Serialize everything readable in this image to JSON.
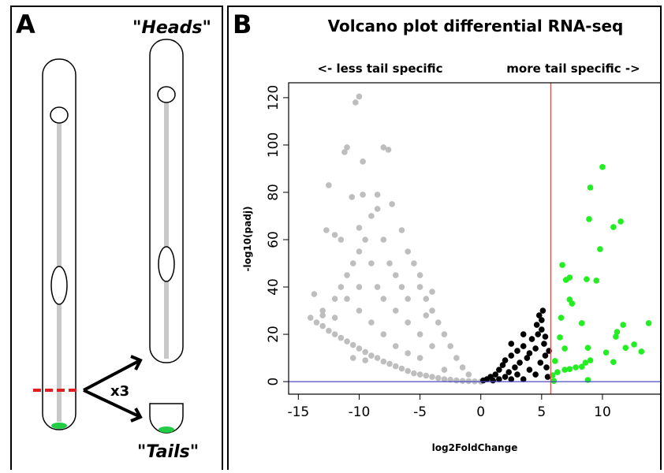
{
  "panel_a": {
    "label": "A",
    "heads": "\"Heads\"",
    "tails": "\"Tails\"",
    "multiplier": "x3"
  },
  "chart_data": {
    "type": "scatter",
    "panel_label": "B",
    "title": "Volcano plot differential RNA-seq",
    "annotations": [
      "<- less tail specific",
      "more tail specific ->"
    ],
    "xlabel": "log2FoldChange",
    "ylabel": "-log10(padj)",
    "xlim": [
      -15.8,
      14.8
    ],
    "ylim": [
      -5.3,
      126.3
    ],
    "xticks": [
      -15,
      -10,
      -5,
      0,
      5,
      10
    ],
    "yticks": [
      0,
      20,
      40,
      60,
      80,
      100,
      120
    ],
    "reference_lines": [
      {
        "axis": "x",
        "value": 5.75,
        "color": "#d9534f"
      },
      {
        "axis": "y",
        "value": 0,
        "color": "#4a4ac8"
      }
    ],
    "series": [
      {
        "color": "#bebebe",
        "x": [
          -14,
          -13.5,
          -13,
          -12.5,
          -12,
          -11.5,
          -11,
          -10.5,
          -10,
          -9.5,
          -9,
          -8.5,
          -8,
          -7.5,
          -7,
          -6.5,
          -6,
          -5.5,
          -5,
          -4.5,
          -4,
          -3.5,
          -3,
          -2.5,
          -2,
          -1.5,
          -1,
          -0.5,
          0,
          -13,
          -12,
          -11.5,
          -11,
          -10.5,
          -10,
          -9.5,
          -12.7,
          -12,
          -11.5,
          -10,
          -9,
          -8.5,
          -7.3,
          -6.5,
          -6,
          -5.5,
          -5,
          -5,
          -4.5,
          -4,
          -3.5,
          -3,
          -2.5,
          -2,
          -1.5,
          -1,
          -8,
          -7.5,
          -7,
          -6.5,
          -6,
          -9,
          -8.5,
          -8,
          -7,
          -6,
          -5,
          -4,
          -10,
          -11,
          -10,
          -9,
          -8,
          -7,
          -6,
          -5,
          -3,
          -10,
          -10.3,
          -11,
          -11.2,
          -8,
          -7.6,
          -9.7,
          -12.5,
          -10.6,
          -9.7,
          -8.5,
          -13.7,
          -12,
          -10.5,
          -9.5,
          -13,
          -4,
          -4.5
        ],
        "values": [
          27,
          25,
          23.5,
          21.5,
          20,
          18.5,
          17,
          15.5,
          14,
          12.5,
          11,
          10,
          8.5,
          7.5,
          6.5,
          5.5,
          4.5,
          3.5,
          3,
          2.5,
          2,
          1.5,
          1,
          0.8,
          0.5,
          0.3,
          0.2,
          0.1,
          0,
          30,
          35,
          40,
          45,
          50,
          55,
          60,
          64,
          62,
          60,
          65,
          70,
          73,
          75,
          64,
          55,
          50,
          45,
          40,
          35,
          30,
          25,
          20,
          15,
          10,
          6,
          3,
          60,
          50,
          45,
          40,
          35,
          50,
          40,
          35,
          30,
          25,
          20,
          15,
          40,
          35,
          30,
          25,
          20,
          15,
          12,
          10,
          5,
          120.5,
          118,
          99,
          97,
          99,
          98,
          93,
          83,
          78,
          79,
          79,
          37,
          27,
          10,
          9,
          28,
          38,
          28
        ]
      },
      {
        "color": "#000000",
        "x": [
          0.2,
          0.5,
          0.8,
          1,
          1.2,
          1.5,
          1.5,
          1.8,
          2,
          2,
          2.3,
          2.5,
          2.5,
          2.8,
          3,
          3,
          3.2,
          3.5,
          3.5,
          3.8,
          4,
          4,
          4.2,
          4.5,
          4.5,
          4.7,
          4.9,
          5,
          5,
          5.1,
          5.2,
          5.3,
          5.4,
          5.5,
          5.6,
          5.3,
          4.6,
          4.8,
          3.5,
          2.5
        ],
        "values": [
          0.5,
          1,
          2,
          0.5,
          3,
          5,
          1,
          7,
          2,
          9,
          4,
          11,
          1,
          6,
          13,
          3,
          8,
          15,
          1,
          10,
          5,
          12,
          18,
          14,
          3,
          20,
          8,
          26,
          22,
          30,
          16,
          11,
          6,
          2,
          13,
          19,
          24,
          28,
          20,
          16
        ]
      },
      {
        "color": "#22ee22",
        "x": [
          10,
          9,
          8.9,
          11.5,
          10.9,
          9.8,
          6.7,
          7.3,
          7,
          9.5,
          8.7,
          7.3,
          7.5,
          6.6,
          8.3,
          11.7,
          13.8,
          11.2,
          11.1,
          6.5,
          12.6,
          11.9,
          8.8,
          10.3,
          13.2,
          6.9,
          9,
          10.9,
          6.1,
          8.6,
          8.3,
          7.8,
          7.3,
          6.9,
          6.3,
          5.9,
          8.8,
          6
        ],
        "values": [
          90.7,
          82,
          68.7,
          67.7,
          65.3,
          56,
          49.3,
          44,
          43,
          42.7,
          43.3,
          34.7,
          33,
          27,
          24.7,
          24,
          24.7,
          21,
          19,
          18.7,
          15.7,
          14.3,
          14.3,
          12.3,
          12.7,
          14,
          9,
          8.3,
          8.7,
          8,
          6.3,
          6,
          5.3,
          5,
          4,
          2.7,
          0.7,
          0.3
        ]
      }
    ]
  }
}
